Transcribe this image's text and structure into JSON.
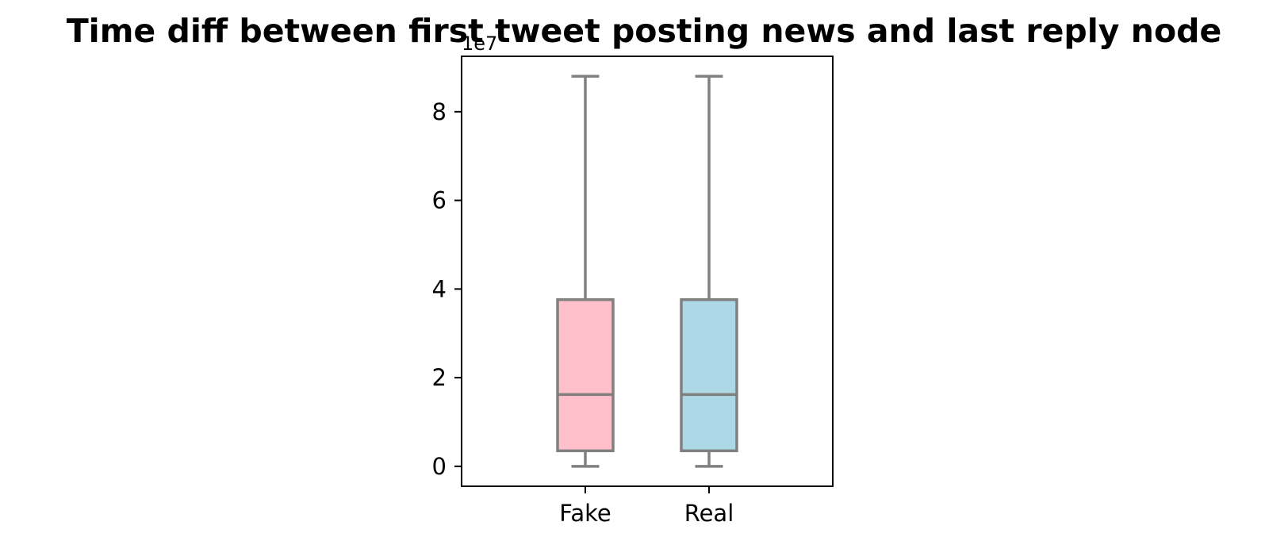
{
  "chart_data": {
    "type": "box",
    "title": "Time diff between first tweet posting news and last reply node",
    "xlabel": "",
    "ylabel": "",
    "y_offset_label": "1e7",
    "y_scale": 10000000,
    "ylim": [
      -0.45,
      9.25
    ],
    "yticks": [
      0,
      2,
      4,
      6,
      8
    ],
    "categories": [
      "Fake",
      "Real"
    ],
    "boxes": [
      {
        "name": "Fake",
        "whisker_low": 0.0,
        "q1": 0.35,
        "median": 1.62,
        "q3": 3.76,
        "whisker_high": 8.8,
        "fill": "#ffc0cb"
      },
      {
        "name": "Real",
        "whisker_low": 0.0,
        "q1": 0.35,
        "median": 1.62,
        "q3": 3.76,
        "whisker_high": 8.8,
        "fill": "#add8e6"
      }
    ],
    "line_color": "#808080",
    "grid": false,
    "legend": "none"
  }
}
